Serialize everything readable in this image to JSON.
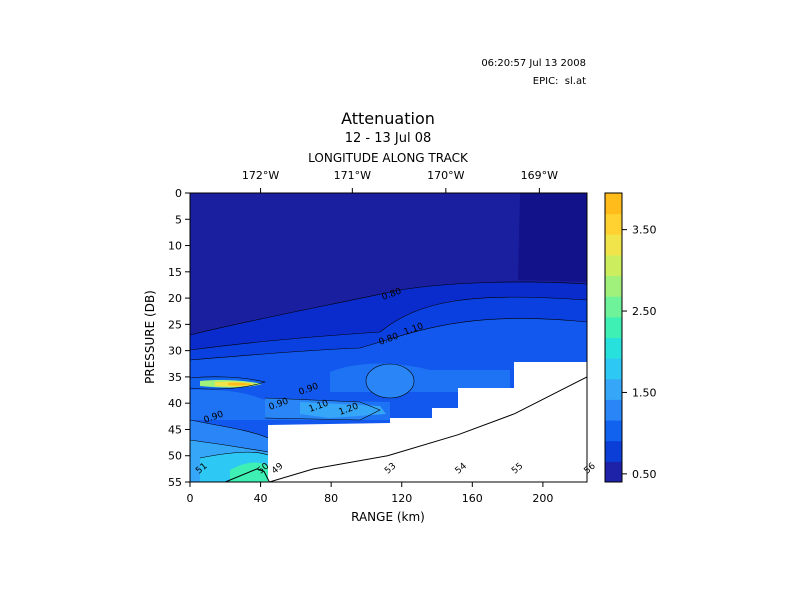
{
  "header": {
    "timestamp": "06:20:57 Jul 13 2008",
    "epic_label": "EPIC:",
    "epic_file": "sl.at"
  },
  "chart_data": {
    "type": "heatmap",
    "title": "Attenuation",
    "subtitle": "12 - 13 Jul 08",
    "top_axis_label": "LONGITUDE ALONG TRACK",
    "top_ticks": [
      {
        "label": "172°W",
        "range_km": 40
      },
      {
        "label": "171°W",
        "range_km": 92
      },
      {
        "label": "170°W",
        "range_km": 145
      },
      {
        "label": "169°W",
        "range_km": 198
      }
    ],
    "xlabel": "RANGE (km)",
    "ylabel": "PRESSURE (DB)",
    "xlim": [
      0,
      225
    ],
    "ylim": [
      0,
      55
    ],
    "x_ticks": [
      0,
      40,
      80,
      120,
      160,
      200
    ],
    "y_ticks": [
      0,
      5,
      10,
      15,
      20,
      25,
      30,
      35,
      40,
      45,
      50,
      55
    ],
    "colorbar": {
      "range": [
        0.4,
        3.95
      ],
      "ticks": [
        "3.50",
        "2.50",
        "1.50",
        "0.50"
      ],
      "tick_values": [
        3.5,
        2.5,
        1.5,
        0.5
      ],
      "colors": [
        "#1e22a8",
        "#0a3ed6",
        "#1262f0",
        "#2a86f6",
        "#36a6f8",
        "#2ec8f4",
        "#27e2dc",
        "#3ef0b4",
        "#6ef29a",
        "#a0f07c",
        "#ccee5e",
        "#f0e44a",
        "#ffd232",
        "#ffbc1a"
      ]
    },
    "contour_labels": [
      "0.90",
      "0.90",
      "0.80",
      "1.10",
      "1.10",
      "1.20",
      "0.90",
      "0.80"
    ],
    "station_labels": [
      {
        "label": "51",
        "range_km": 5
      },
      {
        "label": "50",
        "range_km": 40
      },
      {
        "label": "49",
        "range_km": 48
      },
      {
        "label": "53",
        "range_km": 112
      },
      {
        "label": "54",
        "range_km": 152
      },
      {
        "label": "55",
        "range_km": 184
      },
      {
        "label": "56",
        "range_km": 225
      }
    ],
    "bottom_depth_line": [
      [
        20,
        55
      ],
      [
        38,
        52.5
      ],
      [
        42,
        53
      ],
      [
        45,
        55
      ],
      [
        70,
        52.5
      ],
      [
        112,
        50
      ],
      [
        152,
        46
      ],
      [
        184,
        42
      ],
      [
        225,
        35
      ]
    ]
  }
}
